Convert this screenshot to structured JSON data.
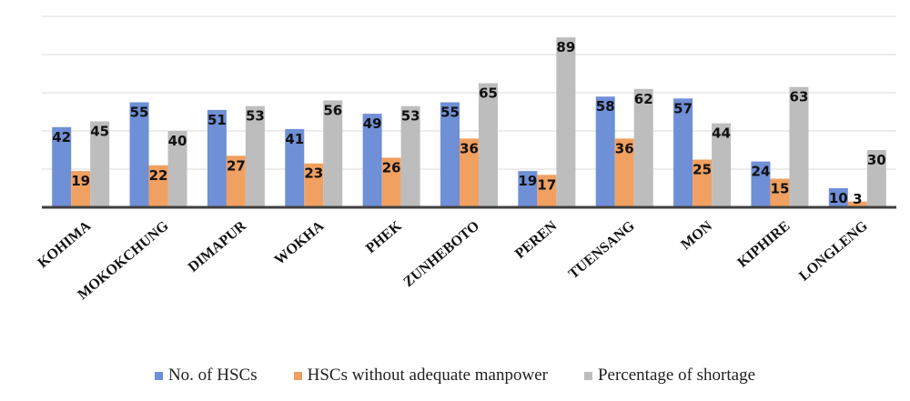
{
  "chart_data": {
    "type": "bar",
    "categories": [
      "KOHIMA",
      "MOKOKCHUNG",
      "DIMAPUR",
      "WOKHA",
      "PHEK",
      "ZUNHEBOTO",
      "PEREN",
      "TUENSANG",
      "MON",
      "KIPHIRE",
      "LONGLENG"
    ],
    "series": [
      {
        "name": "No. of HSCs",
        "color": "#6f8fd6",
        "values": [
          42,
          55,
          51,
          41,
          49,
          55,
          19,
          58,
          57,
          24,
          10
        ]
      },
      {
        "name": "HSCs without adequate manpower",
        "color": "#f0a060",
        "values": [
          19,
          22,
          27,
          23,
          26,
          36,
          17,
          36,
          25,
          15,
          3
        ]
      },
      {
        "name": "Percentage of shortage",
        "color": "#bdbdbd",
        "values": [
          45,
          40,
          53,
          56,
          53,
          65,
          89,
          62,
          44,
          63,
          30
        ]
      }
    ],
    "ylim": [
      0,
      100
    ],
    "grid": true,
    "legend_position": "bottom",
    "title": "",
    "xlabel": "",
    "ylabel": ""
  }
}
